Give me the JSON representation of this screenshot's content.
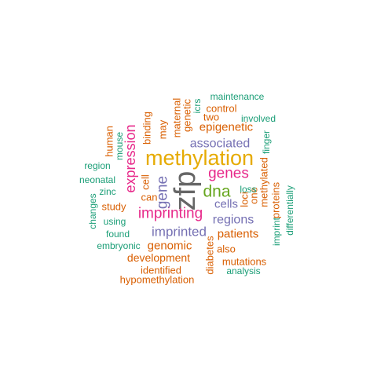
{
  "palette": {
    "orange": "#d95f02",
    "teal": "#1b9e77",
    "purple": "#7570b3",
    "magenta": "#e7298a",
    "green": "#66a61e",
    "gold": "#e6ab02",
    "gray": "#666666"
  },
  "words": [
    {
      "text": "zfp",
      "color": "gray",
      "rotate": true
    },
    {
      "text": "methylation",
      "color": "gold",
      "rotate": false
    },
    {
      "text": "imprinting",
      "color": "magenta",
      "rotate": false
    },
    {
      "text": "dna",
      "color": "green",
      "rotate": false
    },
    {
      "text": "genes",
      "color": "magenta",
      "rotate": false
    },
    {
      "text": "expression",
      "color": "magenta",
      "rotate": true
    },
    {
      "text": "imprinted",
      "color": "purple",
      "rotate": false
    },
    {
      "text": "gene",
      "color": "purple",
      "rotate": true
    },
    {
      "text": "associated",
      "color": "purple",
      "rotate": false
    },
    {
      "text": "regions",
      "color": "purple",
      "rotate": false
    },
    {
      "text": "epigenetic",
      "color": "orange",
      "rotate": false
    },
    {
      "text": "genomic",
      "color": "orange",
      "rotate": false
    },
    {
      "text": "patients",
      "color": "orange",
      "rotate": false
    },
    {
      "text": "development",
      "color": "orange",
      "rotate": false
    },
    {
      "text": "cells",
      "color": "purple",
      "rotate": false
    },
    {
      "text": "identified",
      "color": "orange",
      "rotate": false
    },
    {
      "text": "hypomethylation",
      "color": "orange",
      "rotate": false
    },
    {
      "text": "mutations",
      "color": "orange",
      "rotate": false
    },
    {
      "text": "diabetes",
      "color": "orange",
      "rotate": true
    },
    {
      "text": "maternal",
      "color": "orange",
      "rotate": true
    },
    {
      "text": "genetic",
      "color": "orange",
      "rotate": true
    },
    {
      "text": "study",
      "color": "orange",
      "rotate": false
    },
    {
      "text": "human",
      "color": "orange",
      "rotate": true
    },
    {
      "text": "binding",
      "color": "orange",
      "rotate": true
    },
    {
      "text": "may",
      "color": "orange",
      "rotate": true
    },
    {
      "text": "control",
      "color": "orange",
      "rotate": false
    },
    {
      "text": "two",
      "color": "orange",
      "rotate": false
    },
    {
      "text": "cell",
      "color": "orange",
      "rotate": true
    },
    {
      "text": "can",
      "color": "orange",
      "rotate": false
    },
    {
      "text": "also",
      "color": "orange",
      "rotate": false
    },
    {
      "text": "loci",
      "color": "orange",
      "rotate": true
    },
    {
      "text": "one",
      "color": "orange",
      "rotate": true
    },
    {
      "text": "methylated",
      "color": "orange",
      "rotate": true
    },
    {
      "text": "proteins",
      "color": "orange",
      "rotate": true
    },
    {
      "text": "maintenance",
      "color": "teal",
      "rotate": false
    },
    {
      "text": "involved",
      "color": "teal",
      "rotate": false
    },
    {
      "text": "icrs",
      "color": "teal",
      "rotate": true
    },
    {
      "text": "finger",
      "color": "teal",
      "rotate": true
    },
    {
      "text": "mouse",
      "color": "teal",
      "rotate": true
    },
    {
      "text": "region",
      "color": "teal",
      "rotate": false
    },
    {
      "text": "neonatal",
      "color": "teal",
      "rotate": false
    },
    {
      "text": "zinc",
      "color": "teal",
      "rotate": false
    },
    {
      "text": "changes",
      "color": "teal",
      "rotate": true
    },
    {
      "text": "using",
      "color": "teal",
      "rotate": false
    },
    {
      "text": "found",
      "color": "teal",
      "rotate": false
    },
    {
      "text": "embryonic",
      "color": "teal",
      "rotate": false
    },
    {
      "text": "loss",
      "color": "teal",
      "rotate": false
    },
    {
      "text": "imprint",
      "color": "teal",
      "rotate": true
    },
    {
      "text": "differentially",
      "color": "teal",
      "rotate": true
    },
    {
      "text": "analysis",
      "color": "teal",
      "rotate": false
    }
  ]
}
